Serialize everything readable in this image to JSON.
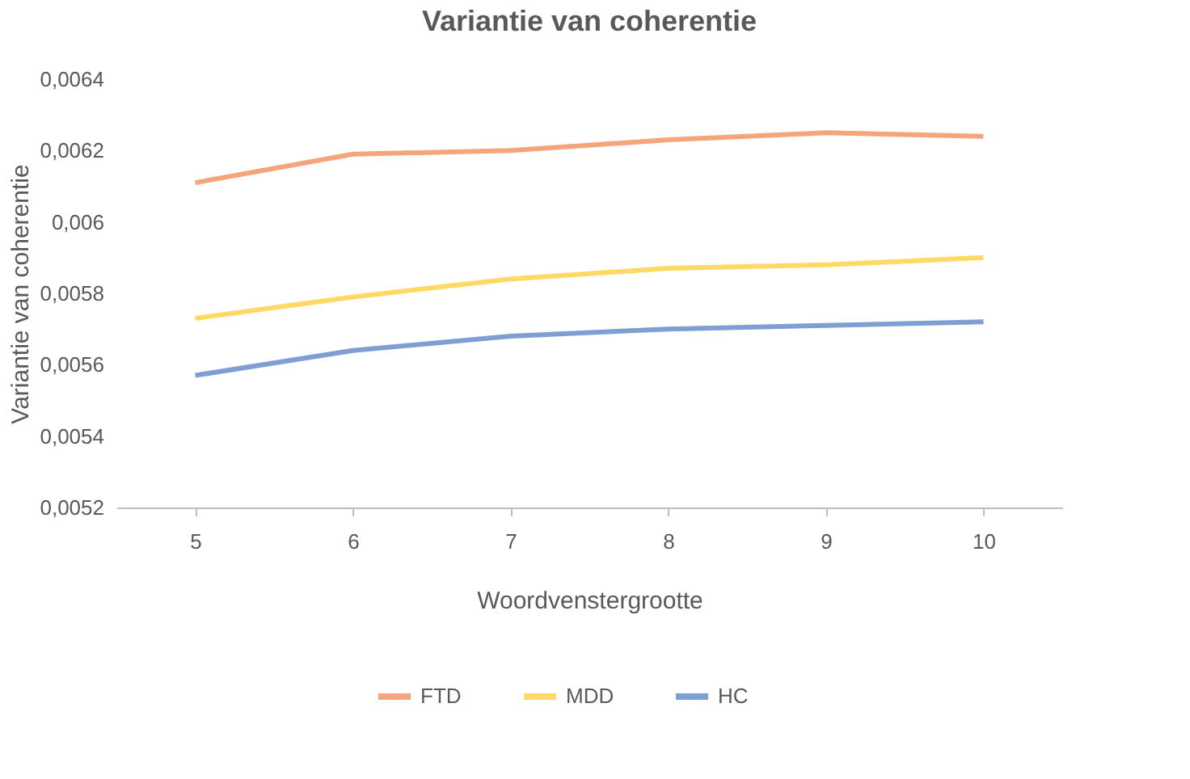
{
  "chart_data": {
    "type": "line",
    "title": "Variantie van coherentie",
    "xlabel": "Woordvenstergrootte",
    "ylabel": "Variantie van coherentie",
    "categories": [
      "5",
      "6",
      "7",
      "8",
      "9",
      "10"
    ],
    "series": [
      {
        "name": "FTD",
        "color": "#f4a57c",
        "values": [
          0.00611,
          0.00619,
          0.0062,
          0.00623,
          0.00625,
          0.00624
        ]
      },
      {
        "name": "MDD",
        "color": "#ffd966",
        "values": [
          0.00573,
          0.00579,
          0.00584,
          0.00587,
          0.00588,
          0.0059
        ]
      },
      {
        "name": "HC",
        "color": "#7f9fd4",
        "values": [
          0.00557,
          0.00564,
          0.00568,
          0.0057,
          0.00571,
          0.00572
        ]
      }
    ],
    "ylim": [
      0.0052,
      0.0064
    ],
    "yticks": [
      {
        "value": 0.0052,
        "label": "0,0052"
      },
      {
        "value": 0.0054,
        "label": "0,0054"
      },
      {
        "value": 0.0056,
        "label": "0,0056"
      },
      {
        "value": 0.0058,
        "label": "0,0058"
      },
      {
        "value": 0.006,
        "label": "0,006"
      },
      {
        "value": 0.0062,
        "label": "0,0062"
      },
      {
        "value": 0.0064,
        "label": "0,0064"
      }
    ],
    "grid": false,
    "legend": "bottom",
    "marker": "none",
    "line_style": "solid"
  }
}
